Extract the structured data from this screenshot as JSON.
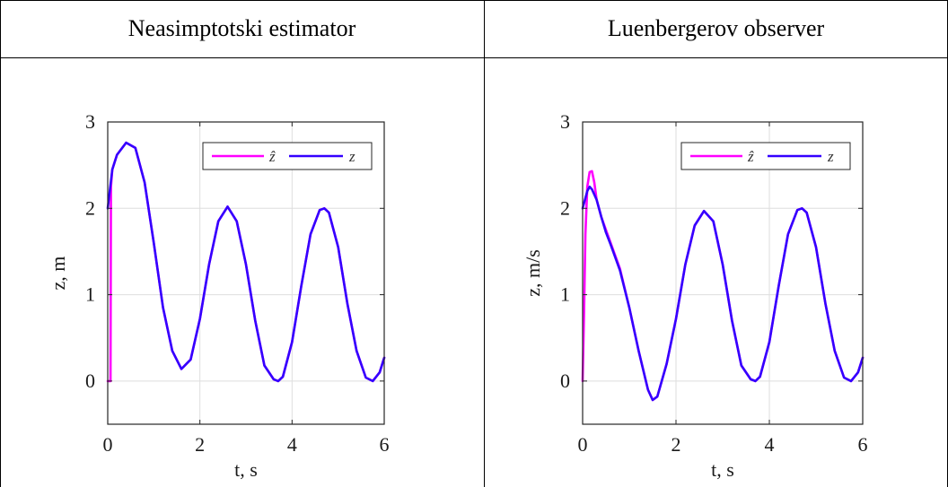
{
  "table": {
    "header_left": "Neasimptotski estimator",
    "header_right": "Luenbergerov observer"
  },
  "colors": {
    "estimate": "#ff00ff",
    "true_state": "#3300ff",
    "grid": "#dedede",
    "axes": "#262626"
  },
  "chart_data": [
    {
      "type": "line",
      "title": "",
      "xlabel": "t, s",
      "ylabel": "z, m",
      "xlim": [
        0,
        6
      ],
      "ylim": [
        -0.5,
        3
      ],
      "xticks": [
        "0",
        "2",
        "4",
        "6"
      ],
      "yticks": [
        "0",
        "1",
        "2",
        "3"
      ],
      "grid": true,
      "legend_position": "top-right",
      "series": [
        {
          "name": "ẑ",
          "x": [
            0,
            0.05,
            0.06,
            0.07,
            0.1,
            0.2,
            0.4,
            0.6,
            0.8,
            1.0,
            1.2,
            1.4,
            1.6,
            1.8,
            2.0,
            2.2,
            2.4,
            2.6,
            2.8,
            3.0,
            3.2,
            3.4,
            3.6,
            3.7,
            3.8,
            4.0,
            4.2,
            4.4,
            4.6,
            4.7,
            4.8,
            5.0,
            5.2,
            5.4,
            5.6,
            5.75,
            5.9,
            6.0
          ],
          "values": [
            0,
            0,
            0,
            2.25,
            2.45,
            2.62,
            2.76,
            2.7,
            2.3,
            1.6,
            0.85,
            0.35,
            0.14,
            0.25,
            0.72,
            1.35,
            1.85,
            2.02,
            1.85,
            1.35,
            0.7,
            0.18,
            0.02,
            0.0,
            0.05,
            0.45,
            1.1,
            1.7,
            1.98,
            2.0,
            1.95,
            1.55,
            0.9,
            0.35,
            0.04,
            0.0,
            0.1,
            0.27
          ]
        },
        {
          "name": "z",
          "x": [
            0,
            0.1,
            0.2,
            0.4,
            0.6,
            0.8,
            1.0,
            1.2,
            1.4,
            1.6,
            1.8,
            2.0,
            2.2,
            2.4,
            2.6,
            2.8,
            3.0,
            3.2,
            3.4,
            3.6,
            3.7,
            3.8,
            4.0,
            4.2,
            4.4,
            4.6,
            4.7,
            4.8,
            5.0,
            5.2,
            5.4,
            5.6,
            5.75,
            5.9,
            6.0
          ],
          "values": [
            2.0,
            2.45,
            2.62,
            2.76,
            2.7,
            2.3,
            1.6,
            0.85,
            0.35,
            0.14,
            0.25,
            0.72,
            1.35,
            1.85,
            2.02,
            1.85,
            1.35,
            0.7,
            0.18,
            0.02,
            0.0,
            0.05,
            0.45,
            1.1,
            1.7,
            1.98,
            2.0,
            1.95,
            1.55,
            0.9,
            0.35,
            0.04,
            0.0,
            0.1,
            0.27
          ]
        }
      ]
    },
    {
      "type": "line",
      "title": "",
      "xlabel": "t, s",
      "ylabel": "z, m/s",
      "xlim": [
        0,
        6
      ],
      "ylim": [
        -0.5,
        3
      ],
      "xticks": [
        "0",
        "2",
        "4",
        "6"
      ],
      "yticks": [
        "0",
        "1",
        "2",
        "3"
      ],
      "grid": true,
      "legend_position": "top-right",
      "series": [
        {
          "name": "ẑ",
          "x": [
            0,
            0.03,
            0.06,
            0.1,
            0.15,
            0.2,
            0.25,
            0.3,
            0.4,
            0.5,
            0.6,
            0.8,
            1.0,
            1.2,
            1.4,
            1.5,
            1.6,
            1.8,
            2.0,
            2.2,
            2.4,
            2.6,
            2.8,
            3.0,
            3.2,
            3.4,
            3.6,
            3.7,
            3.8,
            4.0,
            4.2,
            4.4,
            4.6,
            4.7,
            4.8,
            5.0,
            5.2,
            5.4,
            5.6,
            5.75,
            5.9,
            6.0
          ],
          "values": [
            0,
            0.8,
            1.7,
            2.25,
            2.42,
            2.43,
            2.3,
            2.1,
            1.9,
            1.75,
            1.6,
            1.3,
            0.85,
            0.35,
            -0.1,
            -0.22,
            -0.18,
            0.2,
            0.72,
            1.35,
            1.8,
            1.97,
            1.85,
            1.35,
            0.7,
            0.18,
            0.02,
            0.0,
            0.05,
            0.45,
            1.1,
            1.7,
            1.98,
            2.0,
            1.95,
            1.55,
            0.9,
            0.35,
            0.04,
            0.0,
            0.1,
            0.27
          ]
        },
        {
          "name": "z",
          "x": [
            0,
            0.05,
            0.1,
            0.15,
            0.2,
            0.3,
            0.4,
            0.5,
            0.6,
            0.8,
            1.0,
            1.2,
            1.4,
            1.5,
            1.6,
            1.8,
            2.0,
            2.2,
            2.4,
            2.6,
            2.8,
            3.0,
            3.2,
            3.4,
            3.6,
            3.7,
            3.8,
            4.0,
            4.2,
            4.4,
            4.6,
            4.7,
            4.8,
            5.0,
            5.2,
            5.4,
            5.6,
            5.75,
            5.9,
            6.0
          ],
          "values": [
            2.0,
            2.1,
            2.2,
            2.25,
            2.22,
            2.1,
            1.9,
            1.72,
            1.58,
            1.28,
            0.85,
            0.35,
            -0.1,
            -0.22,
            -0.18,
            0.2,
            0.72,
            1.35,
            1.8,
            1.97,
            1.85,
            1.35,
            0.7,
            0.18,
            0.02,
            0.0,
            0.05,
            0.45,
            1.1,
            1.7,
            1.98,
            2.0,
            1.95,
            1.55,
            0.9,
            0.35,
            0.04,
            0.0,
            0.1,
            0.27
          ]
        }
      ]
    }
  ]
}
